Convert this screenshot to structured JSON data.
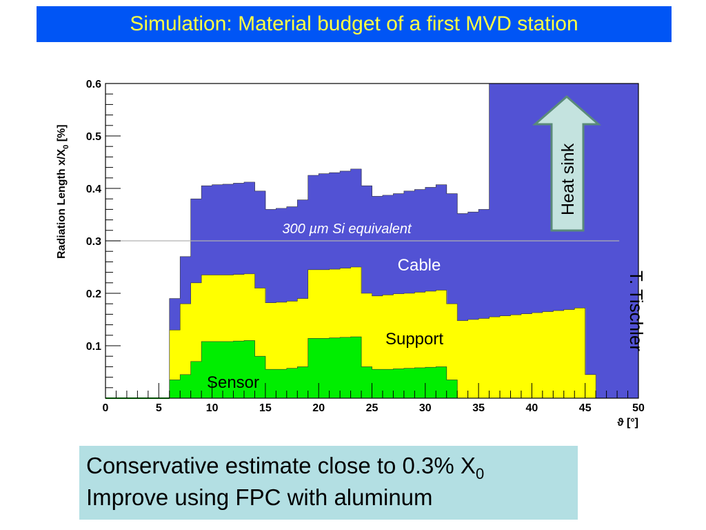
{
  "slide": {
    "title": "Simulation: Material budget of a first MVD station",
    "author": "T. Tischler",
    "notes": {
      "line1_main": "Conservative estimate close to 0.3% X",
      "line1_sub": "0",
      "line2": "Improve using FPC with aluminum"
    }
  },
  "chart_data": {
    "type": "area",
    "ylabel_main": "Radiation Length x/X",
    "ylabel_sub": "0",
    "ylabel_suffix": " [%]",
    "xlabel": "ϑ [°]",
    "xlim": [
      0,
      50
    ],
    "ylim": [
      0,
      0.6
    ],
    "x_ticks": [
      "0",
      "5",
      "10",
      "15",
      "20",
      "25",
      "30",
      "35",
      "40",
      "45",
      "50"
    ],
    "y_ticks": [
      "0.1",
      "0.2",
      "0.3",
      "0.4",
      "0.5",
      "0.6"
    ],
    "series": [
      {
        "name": "Cable",
        "color": "#5252d4",
        "points": [
          [
            6,
            0.19
          ],
          [
            7,
            0.27
          ],
          [
            8,
            0.38
          ],
          [
            9,
            0.405
          ],
          [
            10,
            0.407
          ],
          [
            11,
            0.408
          ],
          [
            12,
            0.41
          ],
          [
            13,
            0.412
          ],
          [
            14,
            0.395
          ],
          [
            15,
            0.36
          ],
          [
            16,
            0.362
          ],
          [
            17,
            0.365
          ],
          [
            18,
            0.378
          ],
          [
            19,
            0.425
          ],
          [
            20,
            0.428
          ],
          [
            21,
            0.43
          ],
          [
            22,
            0.433
          ],
          [
            23,
            0.437
          ],
          [
            24,
            0.405
          ],
          [
            25,
            0.385
          ],
          [
            26,
            0.387
          ],
          [
            27,
            0.39
          ],
          [
            28,
            0.395
          ],
          [
            29,
            0.398
          ],
          [
            30,
            0.402
          ],
          [
            31,
            0.407
          ],
          [
            32,
            0.39
          ],
          [
            33,
            0.352
          ],
          [
            34,
            0.355
          ],
          [
            35,
            0.36
          ],
          [
            36,
            0.6
          ],
          [
            50,
            0.6
          ]
        ]
      },
      {
        "name": "Support",
        "color": "#ffff00",
        "points": [
          [
            6,
            0.13
          ],
          [
            7,
            0.18
          ],
          [
            8,
            0.22
          ],
          [
            9,
            0.235
          ],
          [
            10,
            0.235
          ],
          [
            11,
            0.235
          ],
          [
            12,
            0.236
          ],
          [
            13,
            0.237
          ],
          [
            14,
            0.21
          ],
          [
            15,
            0.182
          ],
          [
            16,
            0.183
          ],
          [
            17,
            0.185
          ],
          [
            18,
            0.19
          ],
          [
            19,
            0.245
          ],
          [
            20,
            0.245
          ],
          [
            21,
            0.246
          ],
          [
            22,
            0.248
          ],
          [
            23,
            0.25
          ],
          [
            24,
            0.2
          ],
          [
            25,
            0.195
          ],
          [
            26,
            0.197
          ],
          [
            27,
            0.199
          ],
          [
            28,
            0.2
          ],
          [
            29,
            0.202
          ],
          [
            30,
            0.204
          ],
          [
            31,
            0.206
          ],
          [
            32,
            0.18
          ],
          [
            33,
            0.148
          ],
          [
            34,
            0.15
          ],
          [
            35,
            0.152
          ],
          [
            36,
            0.155
          ],
          [
            37,
            0.157
          ],
          [
            38,
            0.159
          ],
          [
            39,
            0.161
          ],
          [
            40,
            0.163
          ],
          [
            41,
            0.165
          ],
          [
            42,
            0.167
          ],
          [
            43,
            0.169
          ],
          [
            44,
            0.172
          ],
          [
            45,
            0.045
          ],
          [
            46,
            0.0
          ]
        ]
      },
      {
        "name": "Sensor",
        "color": "#00ee00",
        "points": [
          [
            6,
            0.035
          ],
          [
            7,
            0.045
          ],
          [
            8,
            0.07
          ],
          [
            9,
            0.108
          ],
          [
            10,
            0.108
          ],
          [
            11,
            0.108
          ],
          [
            12,
            0.109
          ],
          [
            13,
            0.11
          ],
          [
            14,
            0.08
          ],
          [
            15,
            0.055
          ],
          [
            16,
            0.055
          ],
          [
            17,
            0.057
          ],
          [
            18,
            0.06
          ],
          [
            19,
            0.114
          ],
          [
            20,
            0.114
          ],
          [
            21,
            0.115
          ],
          [
            22,
            0.116
          ],
          [
            23,
            0.117
          ],
          [
            24,
            0.06
          ],
          [
            25,
            0.055
          ],
          [
            26,
            0.055
          ],
          [
            27,
            0.056
          ],
          [
            28,
            0.057
          ],
          [
            29,
            0.058
          ],
          [
            30,
            0.059
          ],
          [
            31,
            0.06
          ],
          [
            32,
            0.035
          ],
          [
            33,
            0.0
          ]
        ]
      }
    ],
    "reference_line": {
      "y": 0.3,
      "label": "300 µm Si equivalent"
    },
    "annotations": {
      "cable": "Cable",
      "support": "Support",
      "sensor": "Sensor",
      "heat_sink": "Heat sink"
    },
    "grid": false
  },
  "colors": {
    "title_bg": "#0055f5",
    "title_text": "#ffff44",
    "note_bg": "#b3dfe3",
    "arrow_fill": "#c4e3df",
    "arrow_stroke": "#5a8a7a"
  }
}
